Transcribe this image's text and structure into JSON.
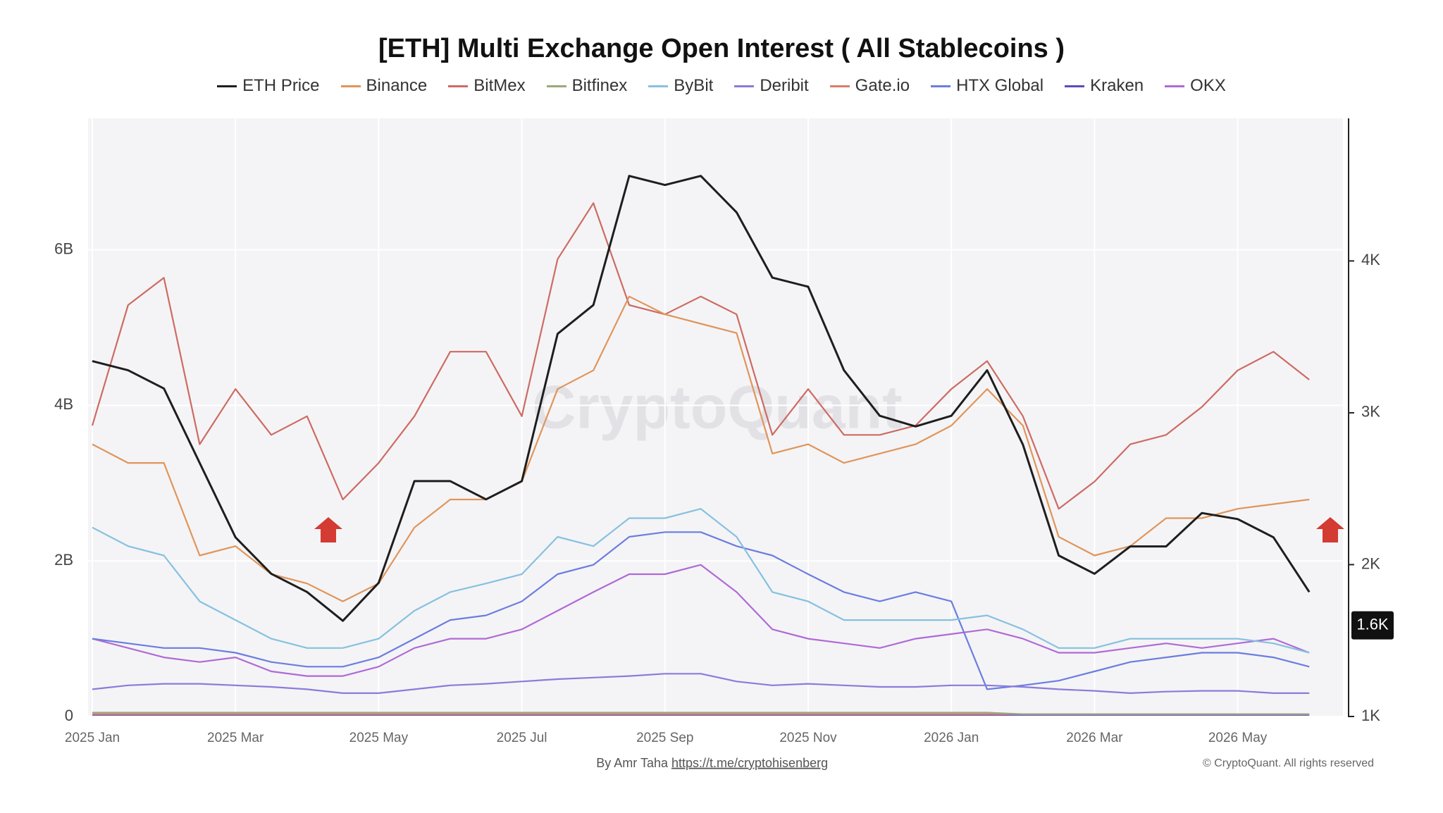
{
  "chart_data": {
    "type": "line",
    "title": "[ETH] Multi Exchange Open Interest ( All Stablecoins )",
    "watermark": "CryptoQuant",
    "credit": "By Amr Taha",
    "link": "https://t.me/cryptohisenberg",
    "copyright": "© CryptoQuant. All rights reserved",
    "categories": [
      "2025 Jan",
      null,
      null,
      null,
      "2025 Mar",
      null,
      null,
      null,
      "2025 May",
      null,
      null,
      null,
      "2025 Jul",
      null,
      null,
      null,
      "2025 Sep",
      null,
      null,
      null,
      "2025 Nov",
      null,
      null,
      null,
      "2026 Jan",
      null,
      null,
      null,
      "2026 Mar",
      null,
      null,
      null,
      "2026 May",
      null,
      null
    ],
    "grid": true,
    "ylim": [
      0,
      7690000000.0
    ],
    "yticks": [
      0,
      {
        "value": 2000000000.0,
        "label": "2B"
      },
      {
        "value": 4000000000.0,
        "label": "4B"
      },
      {
        "value": 6000000000.0,
        "label": "6B"
      }
    ],
    "y2lim": [
      1000,
      4939
    ],
    "y2ticks": [
      {
        "value": 1000,
        "label": "1K"
      },
      {
        "value": 2000,
        "label": "2K"
      },
      {
        "value": 3000,
        "label": "3K"
      },
      {
        "value": 4000,
        "label": "4K"
      }
    ],
    "annotations": [
      {
        "text": "1.6K",
        "value": 1600,
        "axis": "y2"
      }
    ],
    "series": [
      {
        "name": "ETH Price",
        "color": "#1e1e1e",
        "axis": "y2",
        "values": [
          3340,
          3280,
          3160,
          2670,
          2180,
          1940,
          1820,
          1630,
          1880,
          2550,
          2550,
          2430,
          2550,
          3520,
          3710,
          4560,
          4500,
          4560,
          4320,
          3890,
          3830,
          3280,
          2980,
          2910,
          2980,
          3280,
          2790,
          2060,
          1940,
          2120,
          2120,
          2340,
          2300,
          2180,
          1820
        ]
      },
      {
        "name": "Binance",
        "color": "#e0955a",
        "values": [
          3500000000.0,
          3260000000.0,
          3260000000.0,
          2070000000.0,
          2190000000.0,
          1830000000.0,
          1710000000.0,
          1480000000.0,
          1710000000.0,
          2430000000.0,
          2790000000.0,
          2790000000.0,
          3020000000.0,
          4210000000.0,
          4450000000.0,
          5400000000.0,
          5170000000.0,
          5050000000.0,
          4930000000.0,
          3380000000.0,
          3500000000.0,
          3260000000.0,
          3380000000.0,
          3500000000.0,
          3740000000.0,
          4210000000.0,
          3740000000.0,
          2310000000.0,
          2070000000.0,
          2190000000.0,
          2550000000.0,
          2550000000.0,
          2670000000.0,
          2730000000.0,
          2790000000.0
        ]
      },
      {
        "name": "BitMex",
        "color": "#cd6b63",
        "values": [
          3740000000.0,
          5290000000.0,
          5640000000.0,
          3500000000.0,
          4210000000.0,
          3620000000.0,
          3860000000.0,
          2790000000.0,
          3260000000.0,
          3860000000.0,
          4690000000.0,
          4690000000.0,
          3860000000.0,
          5880000000.0,
          6600000000.0,
          5290000000.0,
          5170000000.0,
          5400000000.0,
          5170000000.0,
          3620000000.0,
          4210000000.0,
          3620000000.0,
          3620000000.0,
          3740000000.0,
          4210000000.0,
          4570000000.0,
          3860000000.0,
          2670000000.0,
          3020000000.0,
          3500000000.0,
          3620000000.0,
          3980000000.0,
          4450000000.0,
          4690000000.0,
          4330000000.0
        ]
      },
      {
        "name": "Bitfinex",
        "color": "#9aa87d",
        "values": [
          50000000.0,
          50000000.0,
          50000000.0,
          50000000.0,
          50000000.0,
          50000000.0,
          50000000.0,
          50000000.0,
          50000000.0,
          50000000.0,
          50000000.0,
          50000000.0,
          50000000.0,
          50000000.0,
          50000000.0,
          50000000.0,
          50000000.0,
          50000000.0,
          50000000.0,
          50000000.0,
          50000000.0,
          50000000.0,
          50000000.0,
          50000000.0,
          50000000.0,
          50000000.0,
          30000000.0,
          30000000.0,
          30000000.0,
          30000000.0,
          30000000.0,
          30000000.0,
          30000000.0,
          30000000.0,
          30000000.0
        ]
      },
      {
        "name": "ByBit",
        "color": "#86c1e0",
        "values": [
          2430000000.0,
          2190000000.0,
          2070000000.0,
          1480000000.0,
          1240000000.0,
          1000000000.0,
          880000000.0,
          880000000.0,
          1000000000.0,
          1360000000.0,
          1600000000.0,
          1710000000.0,
          1830000000.0,
          2310000000.0,
          2190000000.0,
          2550000000.0,
          2550000000.0,
          2670000000.0,
          2310000000.0,
          1600000000.0,
          1480000000.0,
          1240000000.0,
          1240000000.0,
          1240000000.0,
          1240000000.0,
          1300000000.0,
          1120000000.0,
          880000000.0,
          880000000.0,
          1000000000.0,
          1000000000.0,
          1000000000.0,
          1000000000.0,
          940000000.0,
          820000000.0
        ]
      },
      {
        "name": "Deribit",
        "color": "#8b7bdb",
        "values": [
          350000000.0,
          400000000.0,
          420000000.0,
          420000000.0,
          400000000.0,
          380000000.0,
          350000000.0,
          300000000.0,
          300000000.0,
          350000000.0,
          400000000.0,
          420000000.0,
          450000000.0,
          480000000.0,
          500000000.0,
          520000000.0,
          550000000.0,
          550000000.0,
          450000000.0,
          400000000.0,
          420000000.0,
          400000000.0,
          380000000.0,
          380000000.0,
          400000000.0,
          400000000.0,
          380000000.0,
          350000000.0,
          330000000.0,
          300000000.0,
          320000000.0,
          330000000.0,
          330000000.0,
          300000000.0,
          300000000.0
        ]
      },
      {
        "name": "Gate.io",
        "color": "#d97e6a",
        "values": [
          30000000.0,
          30000000.0,
          30000000.0,
          30000000.0,
          30000000.0,
          30000000.0,
          30000000.0,
          30000000.0,
          30000000.0,
          30000000.0,
          30000000.0,
          30000000.0,
          30000000.0,
          30000000.0,
          30000000.0,
          30000000.0,
          30000000.0,
          30000000.0,
          30000000.0,
          30000000.0,
          30000000.0,
          30000000.0,
          30000000.0,
          30000000.0,
          30000000.0,
          30000000.0,
          30000000.0,
          30000000.0,
          30000000.0,
          30000000.0,
          30000000.0,
          30000000.0,
          30000000.0,
          30000000.0,
          30000000.0
        ]
      },
      {
        "name": "HTX Global",
        "color": "#6b7de0",
        "values": [
          1000000000.0,
          940000000.0,
          880000000.0,
          880000000.0,
          820000000.0,
          700000000.0,
          640000000.0,
          640000000.0,
          760000000.0,
          1000000000.0,
          1240000000.0,
          1300000000.0,
          1480000000.0,
          1830000000.0,
          1950000000.0,
          2310000000.0,
          2370000000.0,
          2370000000.0,
          2190000000.0,
          2070000000.0,
          1830000000.0,
          1600000000.0,
          1480000000.0,
          1600000000.0,
          1480000000.0,
          350000000.0,
          400000000.0,
          460000000.0,
          580000000.0,
          700000000.0,
          760000000.0,
          820000000.0,
          820000000.0,
          760000000.0,
          640000000.0
        ]
      },
      {
        "name": "Kraken",
        "color": "#5a4cbe",
        "values": [
          20000000.0,
          20000000.0,
          20000000.0,
          20000000.0,
          20000000.0,
          20000000.0,
          20000000.0,
          20000000.0,
          20000000.0,
          20000000.0,
          20000000.0,
          20000000.0,
          20000000.0,
          20000000.0,
          20000000.0,
          20000000.0,
          20000000.0,
          20000000.0,
          20000000.0,
          20000000.0,
          20000000.0,
          20000000.0,
          20000000.0,
          20000000.0,
          20000000.0,
          20000000.0,
          20000000.0,
          20000000.0,
          20000000.0,
          20000000.0,
          20000000.0,
          20000000.0,
          20000000.0,
          20000000.0,
          20000000.0
        ]
      },
      {
        "name": "OKX",
        "color": "#b06ad6",
        "values": [
          1000000000.0,
          880000000.0,
          760000000.0,
          700000000.0,
          760000000.0,
          580000000.0,
          520000000.0,
          520000000.0,
          640000000.0,
          880000000.0,
          1000000000.0,
          1000000000.0,
          1120000000.0,
          1360000000.0,
          1600000000.0,
          1830000000.0,
          1830000000.0,
          1950000000.0,
          1600000000.0,
          1120000000.0,
          1000000000.0,
          940000000.0,
          880000000.0,
          1000000000.0,
          1060000000.0,
          1120000000.0,
          1000000000.0,
          820000000.0,
          820000000.0,
          880000000.0,
          940000000.0,
          880000000.0,
          940000000.0,
          1000000000.0,
          820000000.0
        ]
      }
    ]
  }
}
